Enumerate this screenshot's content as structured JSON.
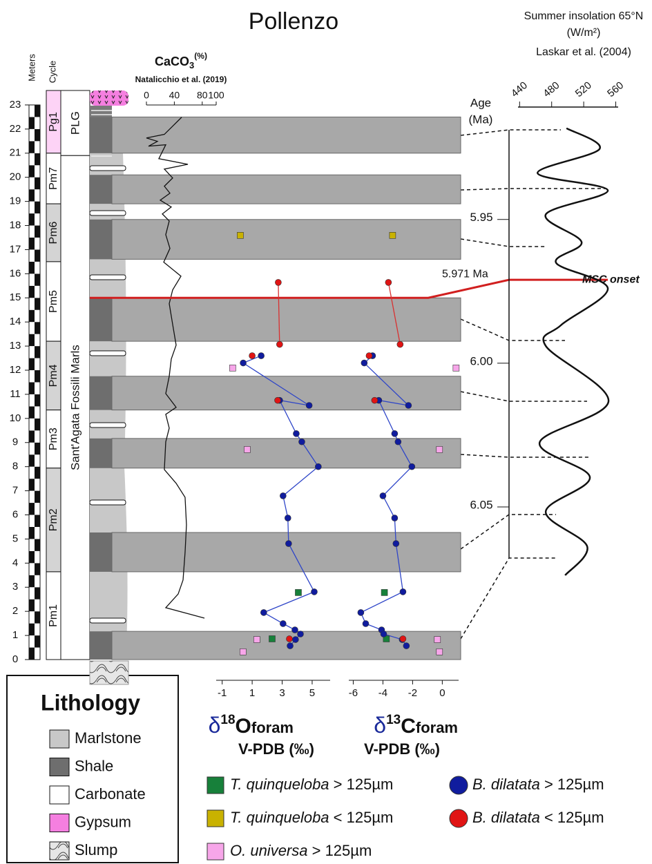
{
  "chart_data": {
    "type": "stratigraphic-log",
    "title": "Pollenzo",
    "depth_axis": {
      "label": "Meters",
      "ylim": [
        0,
        23.6
      ],
      "yticks": [
        0,
        1,
        2,
        3,
        4,
        5,
        6,
        7,
        8,
        9,
        10,
        11,
        12,
        13,
        14,
        15,
        16,
        17,
        18,
        19,
        20,
        21,
        22,
        23
      ]
    },
    "cycles": {
      "label": "Cycle",
      "names": [
        "Pg1",
        "Pm7",
        "Pm6",
        "Pm5",
        "Pm4",
        "Pm3",
        "Pm2",
        "Pm1"
      ],
      "bases": [
        21.0,
        18.9,
        16.5,
        13.2,
        10.35,
        7.94,
        3.64,
        0
      ],
      "tops": [
        23.6,
        21.0,
        18.9,
        16.5,
        13.2,
        10.35,
        7.94,
        3.64
      ],
      "colors": [
        "#fdd3f6",
        "#ffffff",
        "#d4d4d4",
        "#ffffff",
        "#d4d4d4",
        "#ffffff",
        "#d4d4d4",
        "#ffffff"
      ]
    },
    "formations": {
      "names": [
        "PLG",
        "Sant'Agata Fossili Marls"
      ],
      "bases": [
        20.9,
        0
      ],
      "tops": [
        23.6,
        20.9
      ]
    },
    "grey_bands": {
      "bases": [
        21.0,
        18.9,
        16.6,
        13.2,
        10.35,
        7.94,
        3.64,
        0
      ],
      "tops": [
        22.5,
        20.1,
        18.25,
        15.0,
        11.75,
        9.17,
        5.27,
        1.17
      ],
      "color": "#a8a8a8"
    },
    "caco3": {
      "label": "CaCO",
      "label_sub": "3",
      "label_sup": "(%)",
      "source": "Natalicchio et al. (2019)",
      "xlim": [
        0,
        100
      ],
      "xticks": [
        0,
        40,
        80,
        100
      ],
      "depth": [
        22.49,
        22.12,
        21.78,
        21.63,
        21.49,
        21.29,
        21.35,
        20.77,
        20.54,
        20.34,
        19.97,
        19.63,
        19.34,
        19.05,
        18.77,
        18.48,
        18.19,
        17.62,
        17.05,
        16.48,
        15.9,
        15.33,
        14.76,
        13.9,
        13.04,
        12.46,
        11.75,
        11.03,
        10.46,
        10.17,
        9.6,
        9.03,
        7.88,
        7.31,
        6.73,
        5.59,
        4.44,
        3.3,
        2.72,
        2.15,
        1.72
      ],
      "values": [
        50.5,
        37.6,
        25.7,
        0,
        15.8,
        3,
        27.7,
        17.8,
        59.4,
        25.7,
        37.6,
        25.7,
        33.7,
        19.8,
        35.6,
        22.8,
        32.7,
        27.7,
        33.7,
        24.8,
        49.5,
        37.6,
        32.7,
        37.6,
        42.6,
        35.6,
        32.7,
        27.7,
        42.6,
        27.7,
        32.7,
        27.7,
        25.7,
        42.6,
        55.4,
        57.4,
        55.4,
        52.5,
        45.5,
        27.7,
        83.2
      ]
    },
    "d18O_axis": {
      "label_parts": [
        "δ",
        "18",
        "O",
        "foram"
      ],
      "units": "V-PDB (‰)",
      "xlim": [
        -1.4,
        6.2
      ],
      "xticks": [
        -1,
        1,
        3,
        5
      ]
    },
    "d13C_axis": {
      "label_parts": [
        "δ",
        "13",
        "C",
        "foram"
      ],
      "units": "V-PDB (‰)",
      "xlim": [
        -6.3,
        1.1
      ],
      "xticks": [
        -6,
        -4,
        -2,
        0
      ]
    },
    "series": [
      {
        "name": "T. quinqueloba > 125µm",
        "color": "#17803a",
        "marker": "square",
        "line": false,
        "depth": [
          2.78,
          0.86
        ],
        "d18O": [
          4.08,
          2.33
        ],
        "d13C": [
          -3.9,
          -3.77
        ]
      },
      {
        "name": "T. quinqueloba < 125µm",
        "color": "#c9b200",
        "marker": "square",
        "line": false,
        "depth": [
          17.59
        ],
        "d18O": [
          0.21
        ],
        "d13C": [
          -3.35
        ]
      },
      {
        "name": "O. universa > 125µm",
        "color": "#f7a6e9",
        "marker": "square",
        "line": false,
        "depth": [
          12.09,
          8.71,
          0.83,
          0.32
        ],
        "d18O": [
          -0.3,
          0.67,
          1.31,
          0.39
        ],
        "d13C": [
          0.93,
          -0.19,
          -0.33,
          -0.19
        ]
      },
      {
        "name": "B. dilatata > 125µm",
        "color": "#101c9e",
        "marker": "circle",
        "line": true,
        "line_color": "#2e45c8",
        "depth": [
          12.6,
          12.3,
          10.54,
          10.75,
          9.37,
          9.03,
          8.0,
          6.79,
          5.87,
          4.81,
          2.81,
          1.95,
          1.49,
          1.23,
          1.06,
          0.83,
          0.57
        ],
        "d18O": [
          1.6,
          0.4,
          4.8,
          2.83,
          3.94,
          4.31,
          5.41,
          3.06,
          3.38,
          3.43,
          5.14,
          1.77,
          3.06,
          3.85,
          4.22,
          3.89,
          3.53
        ],
        "d13C": [
          -4.7,
          -5.26,
          -2.28,
          -4.28,
          -3.21,
          -2.98,
          -2.05,
          -4.0,
          -3.21,
          -3.12,
          -2.65,
          -5.49,
          -5.16,
          -4.09,
          -3.95,
          -2.7,
          -2.42
        ]
      },
      {
        "name": "B. dilatata < 125µm",
        "color": "#e01414",
        "marker": "circle",
        "line": true,
        "line_color": "#d93030",
        "depth": [
          15.64,
          13.07,
          null,
          12.6,
          null,
          10.75,
          null,
          0.86
        ],
        "d18O": [
          2.74,
          2.83,
          null,
          1.0,
          null,
          2.7,
          null,
          3.48
        ],
        "d13C": [
          -3.63,
          -2.84,
          null,
          -4.93,
          null,
          -4.56,
          null,
          -2.65
        ]
      }
    ],
    "age_axis": {
      "label": "Age",
      "units": "(Ma)",
      "ylim": [
        5.915,
        6.075
      ],
      "yticks": [
        5.95,
        {
          "value": 6.0,
          "label": "6.00"
        },
        6.05
      ]
    },
    "insolation": {
      "title": "Summer insolation 65°N",
      "units": "(W/m²)",
      "source": "Laskar et al. (2004)",
      "xlim": [
        438,
        563
      ],
      "xticks": [
        440,
        480,
        520,
        560
      ],
      "age": [
        5.9183,
        5.9255,
        5.9339,
        5.9399,
        5.9483,
        5.9579,
        5.9651,
        5.974,
        5.9868,
        5.994,
        6.0132,
        6.0276,
        6.0397,
        6.0517,
        6.0637,
        6.0738
      ],
      "values": [
        498.5,
        539.8,
        462.4,
        550.1,
        472.6,
        517.4,
        485.5,
        550.1,
        491.6,
        472.6,
        551.0,
        465.0,
        527.7,
        472.6,
        524.3,
        496.8
      ]
    },
    "msc_onset": {
      "label": "MSC onset",
      "depth": 15.0,
      "age": 5.971,
      "age_label": "5.971 Ma",
      "color": "#d11f1f"
    },
    "lithology_legend": {
      "title": "Lithology",
      "items": [
        "Marlstone",
        "Shale",
        "Carbonate",
        "Gypsum",
        "Slump"
      ]
    }
  }
}
